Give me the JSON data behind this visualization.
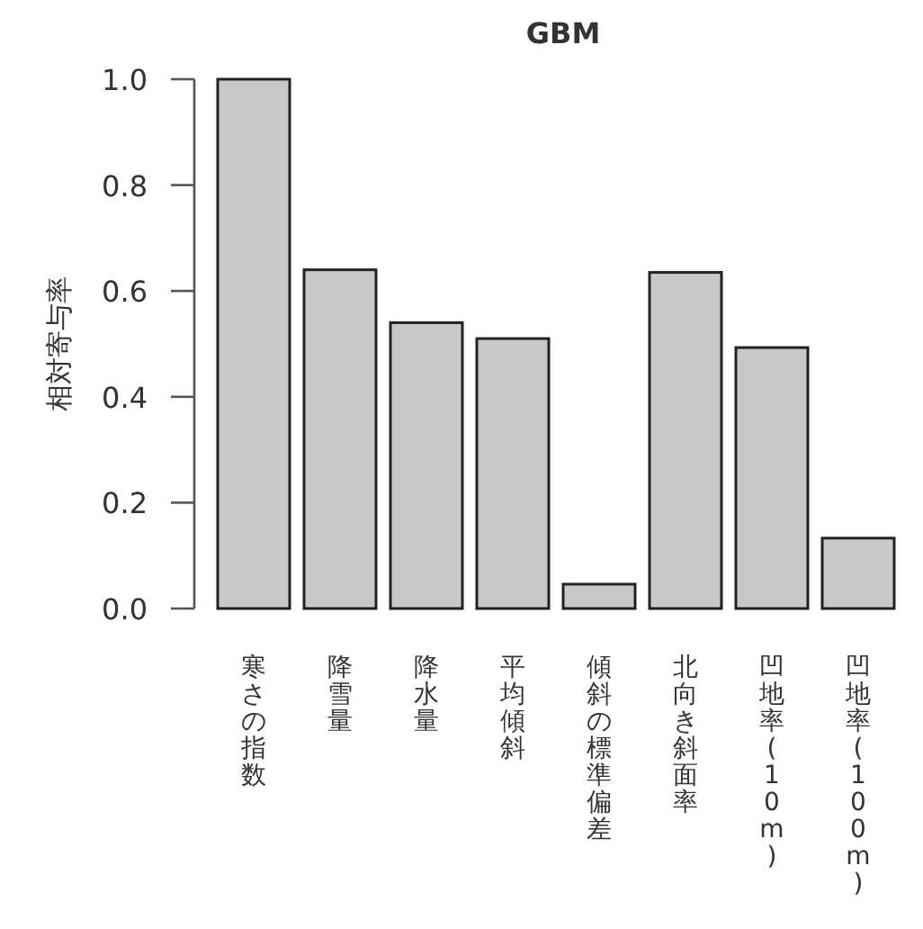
{
  "chart_data": {
    "type": "bar",
    "title": "GBM",
    "ylabel": "相対寄与率",
    "categories": [
      "寒さの指数",
      "降雪量",
      "降水量",
      "平均傾斜",
      "傾斜の標準偏差",
      "北向き斜面率",
      "凹地率(10m)",
      "凹地率(100m)"
    ],
    "values": [
      1.0,
      0.64,
      0.54,
      0.51,
      0.046,
      0.635,
      0.493,
      0.133
    ],
    "color": "#c8c8c8",
    "ylim": [
      0,
      1
    ],
    "yticks": [
      {
        "value": 0,
        "label": "0.0"
      },
      {
        "value": 0.2,
        "label": "0.2"
      },
      {
        "value": 0.4,
        "label": "0.4"
      },
      {
        "value": 0.6,
        "label": "0.6"
      },
      {
        "value": 0.8,
        "label": "0.8"
      },
      {
        "value": 1,
        "label": "1.0"
      }
    ]
  }
}
